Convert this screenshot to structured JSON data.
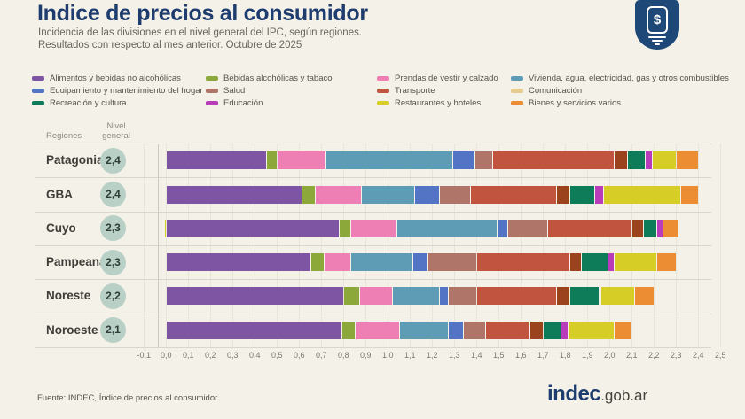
{
  "header": {
    "title": "Indice de precios al consumidor",
    "subtitle_line1": "Incidencia de las divisiones en el nivel general del IPC, según regiones.",
    "subtitle_line2": "Resultados con respecto al mes anterior. Octubre de 2025",
    "badge_symbol": "$"
  },
  "table": {
    "col1_header": "Regiones",
    "col2_header": "Nivel general"
  },
  "chart_data": {
    "type": "bar",
    "orientation": "horizontal-stacked",
    "title": "Incidencia de las divisiones en el nivel general del IPC, según regiones",
    "xlim": [
      -0.1,
      2.5
    ],
    "grid": true,
    "legend_position": "top",
    "x_ticks": [
      "-0,1",
      "0,0",
      "0,1",
      "0,2",
      "0,3",
      "0,4",
      "0,5",
      "0,6",
      "0,7",
      "0,8",
      "0,9",
      "1,0",
      "1,1",
      "1,2",
      "1,3",
      "1,4",
      "1,5",
      "1,6",
      "1,7",
      "1,8",
      "1,9",
      "2,0",
      "2,1",
      "2,2",
      "2,3",
      "2,4",
      "2,5"
    ],
    "categories": [
      {
        "label": "Alimentos y bebidas no alcohólicas",
        "color": "#7d55a3"
      },
      {
        "label": "Bebidas alcohólicas y tabaco",
        "color": "#8ca83b"
      },
      {
        "label": "Prendas de vestir y calzado",
        "color": "#ee7fb4"
      },
      {
        "label": "Vivienda, agua, electricidad, gas y otros combustibles",
        "color": "#5e9cb6"
      },
      {
        "label": "Equipamiento y mantenimiento del hogar",
        "color": "#5374c5"
      },
      {
        "label": "Salud",
        "color": "#ae7568"
      },
      {
        "label": "Transporte",
        "color": "#c1543f"
      },
      {
        "label": "Comunicación",
        "color": "#9a431d",
        "legend_color": "#e5cb8e"
      },
      {
        "label": "Recreación y cultura",
        "color": "#0f7c59"
      },
      {
        "label": "Educación",
        "color": "#b93cba"
      },
      {
        "label": "Restaurantes y hoteles",
        "color": "#d6ce27"
      },
      {
        "label": "Bienes y servicios varios",
        "color": "#ec8c33"
      }
    ],
    "regions": [
      {
        "name": "Patagonia",
        "nivel_general_label": "2,4",
        "nivel_general": 2.4,
        "values": [
          0.45,
          0.05,
          0.22,
          0.57,
          0.1,
          0.08,
          0.55,
          0.06,
          0.08,
          0.03,
          0.11,
          0.1
        ]
      },
      {
        "name": "GBA",
        "nivel_general_label": "2,4",
        "nivel_general": 2.4,
        "values": [
          0.61,
          0.06,
          0.21,
          0.24,
          0.11,
          0.14,
          0.39,
          0.06,
          0.11,
          0.04,
          0.35,
          0.08
        ]
      },
      {
        "name": "Cuyo",
        "nivel_general_label": "2,3",
        "nivel_general": 2.3,
        "values": [
          0.78,
          0.05,
          0.21,
          0.45,
          0.05,
          0.18,
          0.38,
          0.05,
          0.06,
          0.03,
          -0.01,
          0.07
        ]
      },
      {
        "name": "Pampeana",
        "nivel_general_label": "2,3",
        "nivel_general": 2.3,
        "values": [
          0.65,
          0.06,
          0.12,
          0.28,
          0.07,
          0.22,
          0.42,
          0.05,
          0.12,
          0.03,
          0.19,
          0.09
        ]
      },
      {
        "name": "Noreste",
        "nivel_general_label": "2,2",
        "nivel_general": 2.2,
        "values": [
          0.8,
          0.07,
          0.15,
          0.21,
          0.04,
          0.13,
          0.36,
          0.06,
          0.13,
          0.01,
          0.15,
          0.09
        ]
      },
      {
        "name": "Noroeste",
        "nivel_general_label": "2,1",
        "nivel_general": 2.1,
        "values": [
          0.79,
          0.06,
          0.2,
          0.22,
          0.07,
          0.1,
          0.2,
          0.06,
          0.08,
          0.03,
          0.21,
          0.08
        ]
      }
    ]
  },
  "footer": {
    "source": "Fuente: INDEC, Índice de precios al consumidor.",
    "logo_bold": "indec",
    "logo_rest": ".gob.ar"
  }
}
